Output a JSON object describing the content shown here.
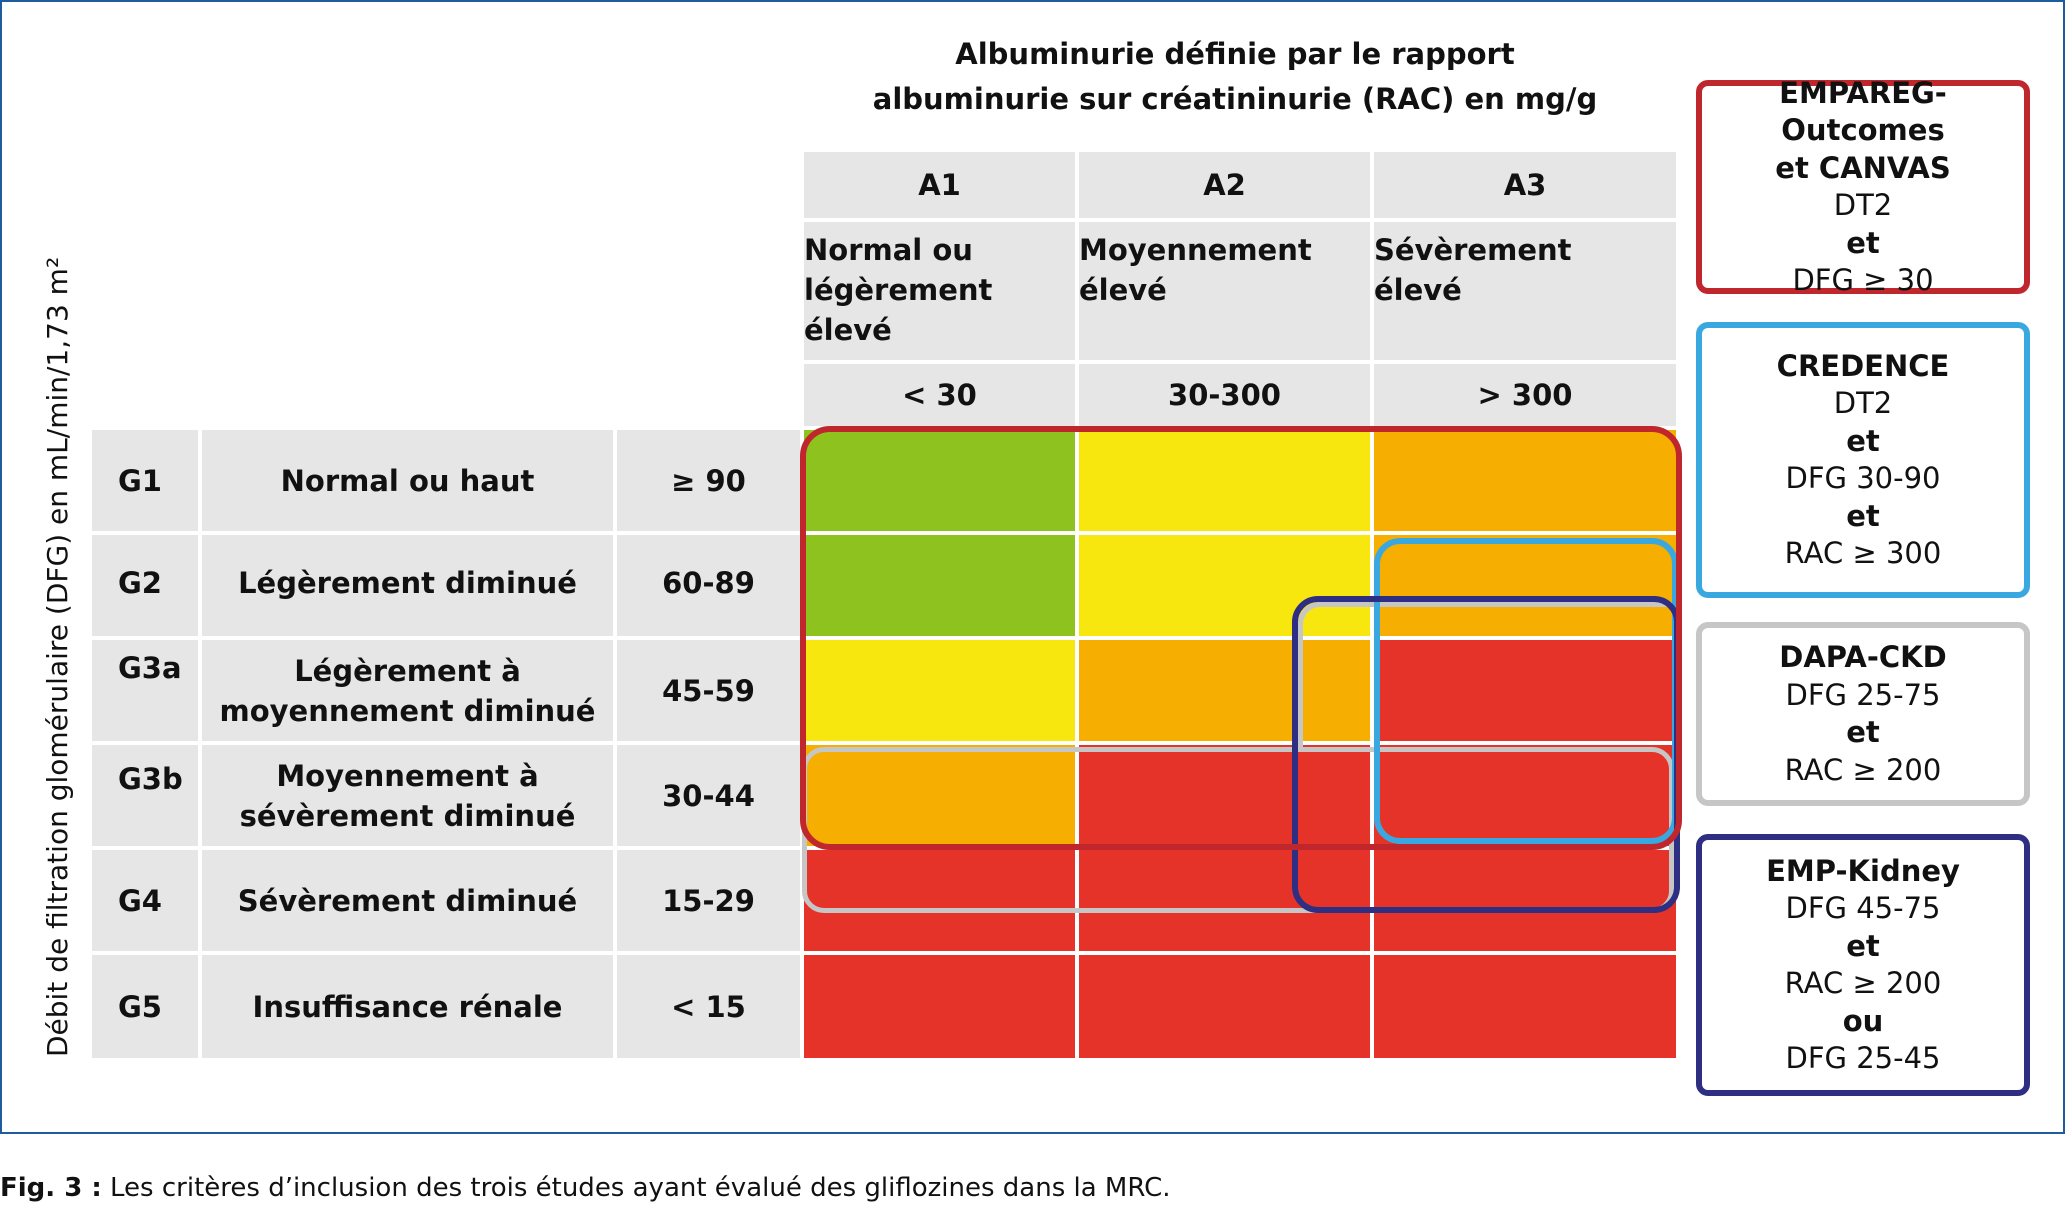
{
  "header": {
    "title_line1": "Albuminurie définie par le rapport",
    "title_line2": "albuminurie sur créatininurie (RAC) en mg/g"
  },
  "y_axis_label": "Débit de filtration glomérulaire (DFG) en mL/min/1,73 m²",
  "columns": [
    {
      "code": "A1",
      "name_l1": "Normal ou",
      "name_l2": "légèrement",
      "name_l3": "élevé",
      "range": "< 30"
    },
    {
      "code": "A2",
      "name_l1": "Moyennement",
      "name_l2": "élevé",
      "name_l3": "",
      "range": "30-300"
    },
    {
      "code": "A3",
      "name_l1": "Sévèrement",
      "name_l2": "élevé",
      "name_l3": "",
      "range": "> 300"
    }
  ],
  "rows": [
    {
      "code": "G1",
      "desc_l1": "Normal ou haut",
      "desc_l2": "",
      "range": "≥ 90"
    },
    {
      "code": "G2",
      "desc_l1": "Légèrement diminué",
      "desc_l2": "",
      "range": "60-89"
    },
    {
      "code": "G3a",
      "desc_l1": "Légèrement à",
      "desc_l2": "moyennement diminué",
      "range": "45-59"
    },
    {
      "code": "G3b",
      "desc_l1": "Moyennement à",
      "desc_l2": "sévèrement diminué",
      "range": "30-44"
    },
    {
      "code": "G4",
      "desc_l1": "Sévèrement diminué",
      "desc_l2": "",
      "range": "15-29"
    },
    {
      "code": "G5",
      "desc_l1": "Insuffisance rénale",
      "desc_l2": "",
      "range": "< 15"
    }
  ],
  "heat_colors": {
    "green": "#8dc21f",
    "yellow": "#f7e70f",
    "orange": "#f6ae00",
    "red": "#e63329"
  },
  "heat_grid": [
    [
      "green",
      "yellow",
      "orange"
    ],
    [
      "green",
      "yellow",
      "orange"
    ],
    [
      "yellow",
      "orange",
      "red"
    ],
    [
      "orange",
      "red",
      "red"
    ],
    [
      "red",
      "red",
      "red"
    ],
    [
      "red",
      "red",
      "red"
    ]
  ],
  "studies": [
    {
      "name_l1": "EMPAREG-Outcomes",
      "name_l2": "et CANVAS",
      "lines": [
        "DT2",
        "et",
        "DFG ≥ 30"
      ],
      "color": "#c0272d"
    },
    {
      "name_l1": "CREDENCE",
      "lines": [
        "DT2",
        "et",
        "DFG 30-90",
        "et",
        "RAC ≥ 300"
      ],
      "color": "#3aa8e0"
    },
    {
      "name_l1": "DAPA-CKD",
      "lines": [
        "DFG 25-75",
        "et",
        "RAC ≥ 200"
      ],
      "color": "#c6c6c6"
    },
    {
      "name_l1": "EMP-Kidney",
      "lines": [
        "DFG 45-75",
        "et",
        "RAC ≥ 200",
        "ou",
        "DFG 25-45"
      ],
      "color": "#2e2e82"
    }
  ],
  "caption": {
    "lead": "Fig. 3 :",
    "text": " Les critères d’inclusion des trois études ayant évalué des gliflozines dans la MRC."
  }
}
